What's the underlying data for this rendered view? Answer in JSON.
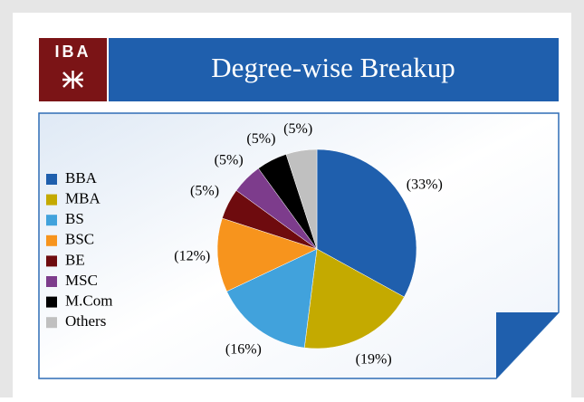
{
  "logo_text": "IBA",
  "chart_data": {
    "type": "pie",
    "title": "Degree-wise Breakup",
    "categories": [
      "BBA",
      "MBA",
      "BS",
      "BSC",
      "BE",
      "MSC",
      "M.Com",
      "Others"
    ],
    "values": [
      33,
      19,
      16,
      12,
      5,
      5,
      5,
      5
    ],
    "value_labels": [
      "(33%)",
      "(19%)",
      "(16%)",
      "(12%)",
      "(5%)",
      "(5%)",
      "(5%)",
      "(5%)"
    ],
    "colors": [
      "#1f5fad",
      "#c4aa00",
      "#41a2dc",
      "#f7941d",
      "#6e0b0e",
      "#7d3c8c",
      "#000000",
      "#c0c0c0"
    ],
    "legend": "left"
  }
}
